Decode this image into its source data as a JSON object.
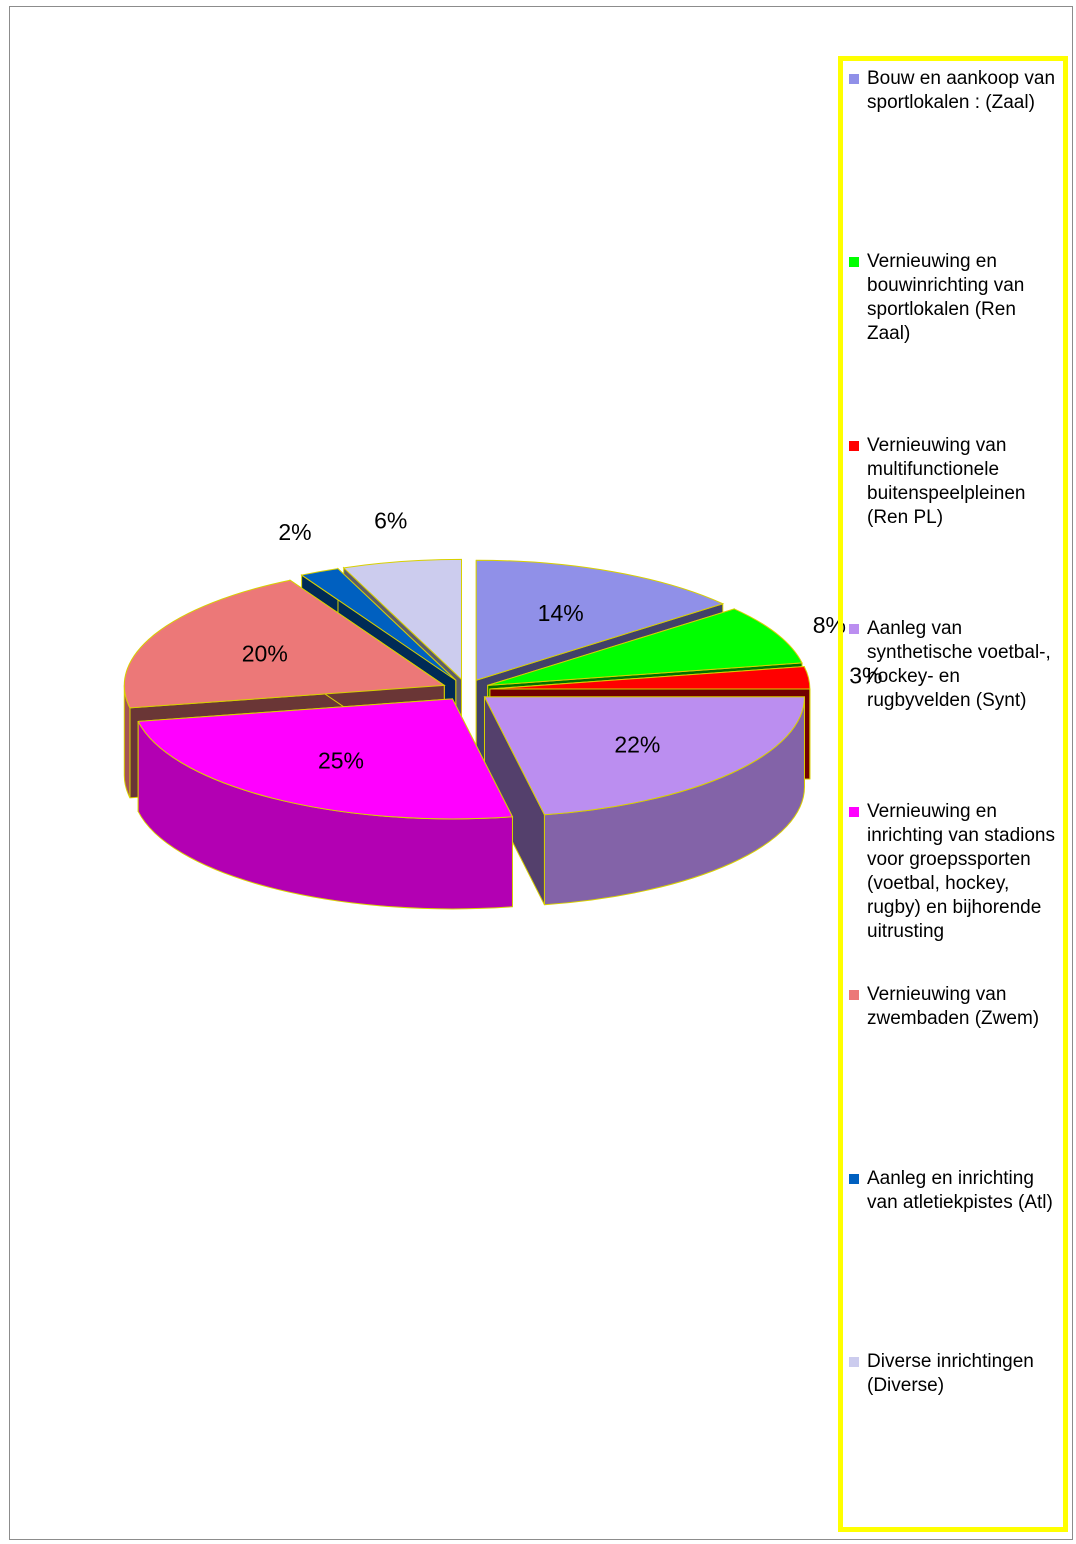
{
  "chart_data": {
    "type": "pie",
    "title": "",
    "slices": [
      {
        "label": "Bouw en aankoop van sportlokalen : (Zaal)",
        "value": 14,
        "display": "14%",
        "color": "#9090e8"
      },
      {
        "label": "Vernieuwing en bouwinrichting van sportlokalen (Ren Zaal)",
        "value": 8,
        "display": "8%",
        "color": "#00ff00"
      },
      {
        "label": "Vernieuwing van multifunctionele buitenspeelpleinen (Ren PL)",
        "value": 3,
        "display": "3%",
        "color": "#ff0000"
      },
      {
        "label": "Aanleg van synthetische voetbal-, hockey- en rugbyvelden (Synt)",
        "value": 22,
        "display": "22%",
        "color": "#bb8ef0"
      },
      {
        "label": "Vernieuwing en inrichting van stadions voor groepssporten (voetbal, hockey, rugby) en bijhorende uitrusting",
        "value": 25,
        "display": "25%",
        "color": "#ff00ff"
      },
      {
        "label": "Vernieuwing van zwembaden (Zwem)",
        "value": 20,
        "display": "20%",
        "color": "#ec7878"
      },
      {
        "label": "Aanleg en inrichting van atletiekpistes (Atl)",
        "value": 2,
        "display": "2%",
        "color": "#0060c0"
      },
      {
        "label": "Diverse inrichtingen (Diverse)",
        "value": 6,
        "display": "6%",
        "color": "#ccccee"
      }
    ],
    "style": "3d-exploded",
    "legend_position": "right"
  }
}
